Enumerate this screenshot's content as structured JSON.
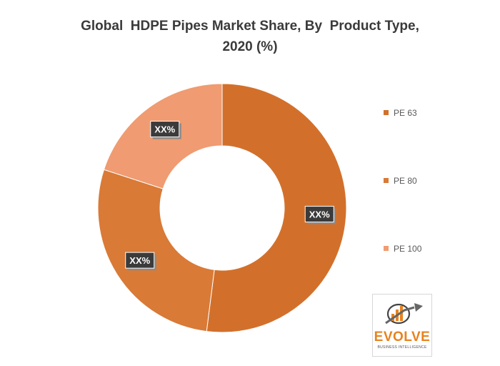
{
  "chart_data": {
    "type": "pie",
    "title_lines": [
      "Global  HDPE Pipes Market Share, By  Product Type,",
      "2020 (%)"
    ],
    "categories": [
      "PE 63",
      "PE 80",
      "PE 100"
    ],
    "values": [
      52,
      28,
      20
    ],
    "data_labels": [
      "XX%",
      "XX%",
      "XX%"
    ],
    "colors": [
      "#d2702b",
      "#d97a37",
      "#f09b71"
    ],
    "donut": true,
    "legend_position": "right"
  },
  "logo": {
    "word": "EVOLVE",
    "tagline": "BUSINESS INTELLIGENCE"
  }
}
